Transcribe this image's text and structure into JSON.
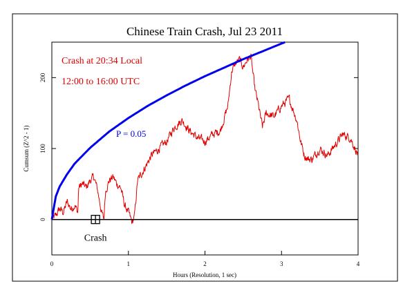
{
  "chart_data": {
    "type": "line",
    "title": "Chinese Train Crash, Jul 23 2011",
    "xlabel": "Hours (Resolution, 1 sec)",
    "ylabel": "Cumsum (Z^2 - 1)",
    "xlim": [
      0,
      4
    ],
    "ylim": [
      -50,
      250
    ],
    "xticks": [
      "0",
      "1",
      "2",
      "3",
      "4"
    ],
    "yticks": [
      "0",
      "100",
      "200"
    ],
    "grid": false,
    "legend": "none",
    "annotations": {
      "line1": "Crash at 20:34 Local",
      "line2": "12:00 to 16:00 UTC",
      "p_label": "P = 0.05",
      "event_label": "Crash"
    },
    "event_marker": {
      "x": 0.57,
      "y": 0
    },
    "series": [
      {
        "color": "#e00000",
        "x": [
          0,
          0.05,
          0.1,
          0.15,
          0.2,
          0.25,
          0.3,
          0.34,
          0.35,
          0.4,
          0.45,
          0.5,
          0.55,
          0.6,
          0.65,
          0.68,
          0.7,
          0.75,
          0.8,
          0.85,
          0.9,
          0.95,
          1.0,
          1.05,
          1.08,
          1.12,
          1.2,
          1.3,
          1.4,
          1.5,
          1.6,
          1.7,
          1.8,
          1.9,
          2.0,
          2.1,
          2.2,
          2.3,
          2.35,
          2.4,
          2.45,
          2.5,
          2.55,
          2.6,
          2.65,
          2.7,
          2.75,
          2.8,
          2.9,
          3.0,
          3.1,
          3.15,
          3.2,
          3.25,
          3.3,
          3.35,
          3.4,
          3.5,
          3.6,
          3.7,
          3.8,
          3.9,
          4.0
        ],
        "values": [
          0,
          5,
          15,
          10,
          25,
          15,
          20,
          10,
          45,
          50,
          45,
          55,
          60,
          40,
          10,
          0,
          40,
          55,
          60,
          50,
          45,
          20,
          10,
          -5,
          5,
          55,
          70,
          90,
          100,
          110,
          130,
          140,
          125,
          115,
          110,
          120,
          125,
          160,
          210,
          220,
          225,
          215,
          225,
          230,
          185,
          160,
          130,
          150,
          145,
          160,
          170,
          155,
          140,
          110,
          90,
          85,
          85,
          100,
          90,
          105,
          120,
          115,
          90
        ]
      },
      {
        "name": "P = 0.05",
        "color": "#0000ee",
        "type": "curve",
        "x": [
          0,
          0.05,
          0.1,
          0.2,
          0.3,
          0.5,
          0.75,
          1.0,
          1.25,
          1.5,
          1.75,
          2.0,
          2.25,
          2.5,
          2.75,
          3.0,
          3.25,
          3.5
        ],
        "values": [
          0,
          32,
          46,
          64,
          79,
          101,
          124,
          143,
          160,
          175,
          189,
          202,
          214,
          226,
          237,
          248,
          258,
          268
        ]
      },
      {
        "name": "baseline",
        "color": "#000000",
        "x": [
          0,
          4
        ],
        "values": [
          0,
          0
        ]
      }
    ]
  }
}
